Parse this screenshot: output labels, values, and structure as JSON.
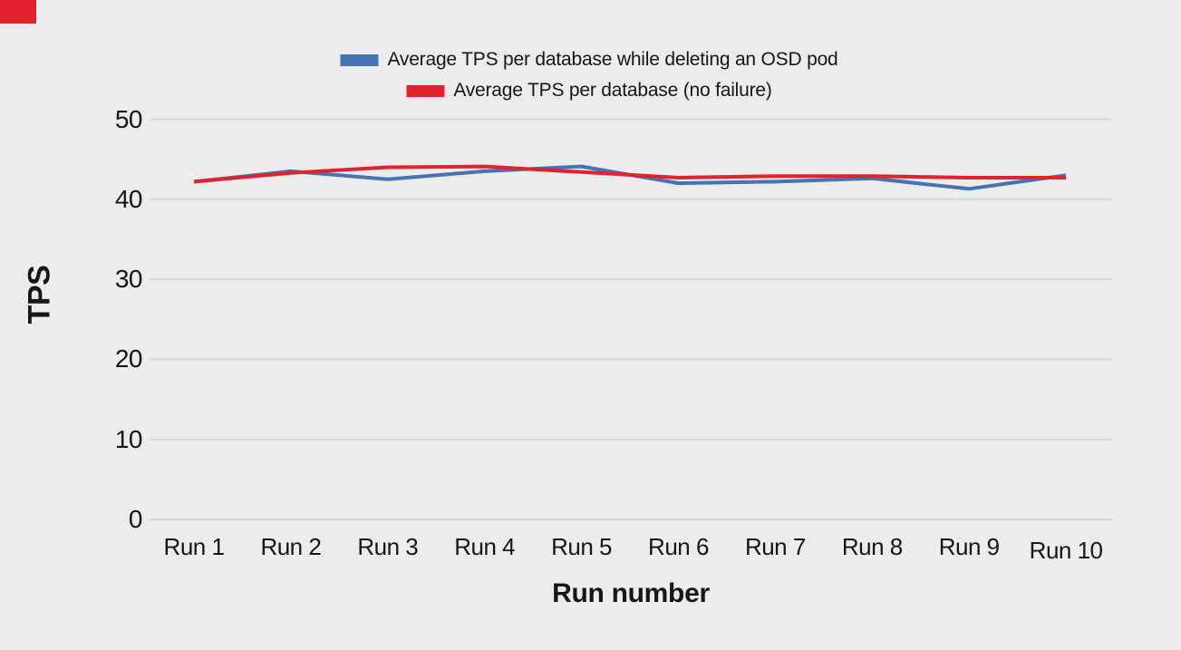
{
  "page": {
    "background_color": "#ECECEC",
    "gridline_color": "#D8D8D8",
    "text_color": "#161616",
    "corner_mark_color": "#E2232E"
  },
  "chart_data": {
    "type": "line",
    "title": "",
    "xlabel": "Run number",
    "ylabel": "TPS",
    "categories": [
      "Run 1",
      "Run 2",
      "Run 3",
      "Run 4",
      "Run 5",
      "Run 6",
      "Run 7",
      "Run 8",
      "Run 9",
      "Run 10"
    ],
    "yticks": [
      0,
      10,
      20,
      30,
      40,
      50
    ],
    "ylim": [
      0,
      50
    ],
    "grid": true,
    "legend_position": "top-center",
    "series": [
      {
        "name": "Average TPS per database while deleting an OSD pod",
        "color": "#4573B5",
        "values": [
          42.2,
          43.5,
          42.5,
          43.5,
          44.1,
          42.0,
          42.2,
          42.6,
          41.3,
          43.0
        ]
      },
      {
        "name": "Average TPS per database (no failure)",
        "color": "#E2232E",
        "values": [
          42.2,
          43.3,
          44.0,
          44.1,
          43.4,
          42.7,
          42.9,
          42.9,
          42.7,
          42.7
        ]
      }
    ]
  }
}
